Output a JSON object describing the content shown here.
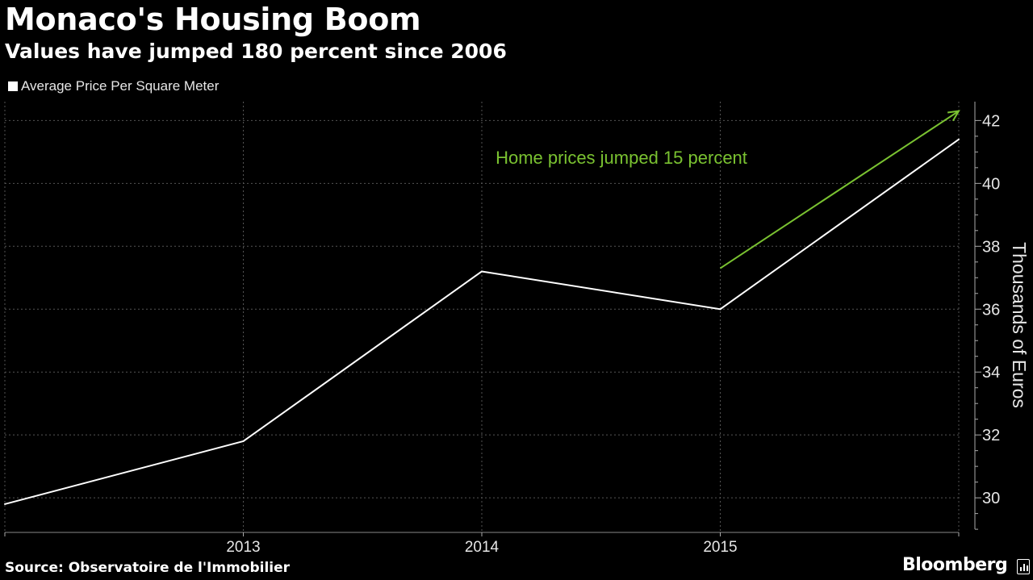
{
  "header": {
    "title": "Monaco's Housing Boom",
    "subtitle": "Values have jumped 180 percent since 2006"
  },
  "footer": {
    "source": "Source: Observatoire de l'Immobilier",
    "brand": "Bloomberg"
  },
  "icons": {
    "brand": "bloomberg-bar-chart-icon"
  },
  "colors": {
    "background": "#000000",
    "series": "#ffffff",
    "annotation": "#7ac231",
    "grid": "#555555"
  },
  "chart_data": {
    "type": "line",
    "title": "Monaco's Housing Boom",
    "subtitle": "Values have jumped 180 percent since 2006",
    "x": [
      2012,
      2013,
      2014,
      2015,
      2016
    ],
    "series": [
      {
        "name": "Average Price Per Square Meter",
        "values": [
          29.8,
          31.8,
          37.2,
          36.0,
          41.4
        ]
      }
    ],
    "xticks": [
      "2013",
      "2014",
      "2015"
    ],
    "xtick_values": [
      2013,
      2014,
      2015
    ],
    "yticks": [
      "30",
      "32",
      "34",
      "36",
      "38",
      "40",
      "42"
    ],
    "ytick_values": [
      30,
      32,
      34,
      36,
      38,
      40,
      42
    ],
    "xlim": [
      2012,
      2016
    ],
    "ylim": [
      28.9,
      42.6
    ],
    "ylabel": "Thousands of Euros",
    "xlabel": "",
    "grid": true,
    "legend_position": "top-left",
    "y_axis_side": "right",
    "annotation": {
      "text": "Home prices jumped 15 percent",
      "arrow_from": [
        2015,
        37.3
      ],
      "arrow_to": [
        2016,
        42.3
      ]
    }
  }
}
